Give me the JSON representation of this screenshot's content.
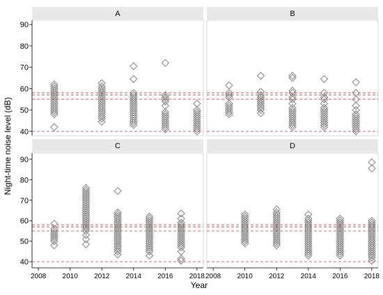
{
  "figure": {
    "xlabel": "Year",
    "ylabel": "Night-time noise level (dB)"
  },
  "colors": {
    "marker": "#8c8c8c",
    "reference_line": "#d62728",
    "strip_background": "#e8e8e8",
    "axis": "#000000"
  },
  "chart_data": [
    {
      "type": "scatter",
      "panel": "A",
      "marker": "hollow diamond",
      "xlim": [
        2007.6,
        2018.4
      ],
      "ylim": [
        38,
        92
      ],
      "x_ticks": [
        2008,
        2010,
        2012,
        2014,
        2016,
        2018
      ],
      "y_ticks": [
        40,
        50,
        60,
        70,
        80,
        90
      ],
      "show_x_tick_labels": false,
      "show_y_tick_labels": true,
      "reference_lines": [
        40,
        55,
        57,
        58
      ],
      "points": [
        [
          2009,
          42
        ],
        [
          2009,
          48
        ],
        [
          2009,
          49
        ],
        [
          2009,
          50
        ],
        [
          2009,
          51
        ],
        [
          2009,
          52
        ],
        [
          2009,
          53
        ],
        [
          2009,
          54
        ],
        [
          2009,
          55
        ],
        [
          2009,
          56
        ],
        [
          2009,
          57
        ],
        [
          2009,
          58
        ],
        [
          2009,
          59
        ],
        [
          2009,
          60
        ],
        [
          2009,
          61
        ],
        [
          2009,
          62
        ],
        [
          2012,
          44.5
        ],
        [
          2012,
          46
        ],
        [
          2012,
          47
        ],
        [
          2012,
          48
        ],
        [
          2012,
          49
        ],
        [
          2012,
          50
        ],
        [
          2012,
          51
        ],
        [
          2012,
          52
        ],
        [
          2012,
          53
        ],
        [
          2012,
          54
        ],
        [
          2012,
          55
        ],
        [
          2012,
          56
        ],
        [
          2012,
          57
        ],
        [
          2012,
          58
        ],
        [
          2012,
          59
        ],
        [
          2012,
          60
        ],
        [
          2012,
          61
        ],
        [
          2012,
          62.5
        ],
        [
          2014,
          43
        ],
        [
          2014,
          44
        ],
        [
          2014,
          45
        ],
        [
          2014,
          46
        ],
        [
          2014,
          47
        ],
        [
          2014,
          48
        ],
        [
          2014,
          49
        ],
        [
          2014,
          50
        ],
        [
          2014,
          51
        ],
        [
          2014,
          52
        ],
        [
          2014,
          53
        ],
        [
          2014,
          54
        ],
        [
          2014,
          55
        ],
        [
          2014,
          56
        ],
        [
          2014,
          57
        ],
        [
          2014,
          58
        ],
        [
          2014,
          64.5
        ],
        [
          2014,
          70.5
        ],
        [
          2016,
          41
        ],
        [
          2016,
          42
        ],
        [
          2016,
          43
        ],
        [
          2016,
          44
        ],
        [
          2016,
          45
        ],
        [
          2016,
          46
        ],
        [
          2016,
          47
        ],
        [
          2016,
          48
        ],
        [
          2016,
          49
        ],
        [
          2016,
          52
        ],
        [
          2016,
          54
        ],
        [
          2016,
          55
        ],
        [
          2016,
          56
        ],
        [
          2016,
          57
        ],
        [
          2016,
          72
        ],
        [
          2018,
          40
        ],
        [
          2018,
          41
        ],
        [
          2018,
          42
        ],
        [
          2018,
          43
        ],
        [
          2018,
          44
        ],
        [
          2018,
          45
        ],
        [
          2018,
          46
        ],
        [
          2018,
          47
        ],
        [
          2018,
          48
        ],
        [
          2018,
          49
        ],
        [
          2018,
          50
        ],
        [
          2018,
          53
        ]
      ]
    },
    {
      "type": "scatter",
      "panel": "B",
      "marker": "hollow diamond",
      "xlim": [
        2007.6,
        2018.4
      ],
      "ylim": [
        38,
        92
      ],
      "x_ticks": [
        2008,
        2010,
        2012,
        2014,
        2016,
        2018
      ],
      "y_ticks": [
        40,
        50,
        60,
        70,
        80,
        90
      ],
      "show_x_tick_labels": false,
      "show_y_tick_labels": false,
      "reference_lines": [
        40,
        55,
        57,
        58
      ],
      "points": [
        [
          2009,
          48
        ],
        [
          2009,
          49
        ],
        [
          2009,
          50
        ],
        [
          2009,
          51
        ],
        [
          2009,
          52
        ],
        [
          2009,
          53
        ],
        [
          2009,
          56
        ],
        [
          2009,
          57
        ],
        [
          2009,
          58
        ],
        [
          2009,
          61.5
        ],
        [
          2011,
          48.5
        ],
        [
          2011,
          50
        ],
        [
          2011,
          51
        ],
        [
          2011,
          52
        ],
        [
          2011,
          53
        ],
        [
          2011,
          54
        ],
        [
          2011,
          55
        ],
        [
          2011,
          56
        ],
        [
          2011,
          57
        ],
        [
          2011,
          58.5
        ],
        [
          2011,
          66
        ],
        [
          2013,
          42
        ],
        [
          2013,
          43
        ],
        [
          2013,
          44
        ],
        [
          2013,
          45
        ],
        [
          2013,
          46
        ],
        [
          2013,
          47
        ],
        [
          2013,
          48
        ],
        [
          2013,
          49
        ],
        [
          2013,
          50
        ],
        [
          2013,
          51
        ],
        [
          2013,
          53
        ],
        [
          2013,
          55
        ],
        [
          2013,
          56
        ],
        [
          2013,
          58
        ],
        [
          2013,
          59
        ],
        [
          2013,
          65
        ],
        [
          2013,
          66
        ],
        [
          2015,
          42
        ],
        [
          2015,
          43
        ],
        [
          2015,
          44
        ],
        [
          2015,
          45
        ],
        [
          2015,
          46
        ],
        [
          2015,
          47
        ],
        [
          2015,
          48
        ],
        [
          2015,
          49
        ],
        [
          2015,
          50
        ],
        [
          2015,
          51
        ],
        [
          2015,
          53
        ],
        [
          2015,
          55
        ],
        [
          2015,
          56
        ],
        [
          2015,
          58
        ],
        [
          2015,
          64.5
        ],
        [
          2017,
          40
        ],
        [
          2017,
          41
        ],
        [
          2017,
          42
        ],
        [
          2017,
          43
        ],
        [
          2017,
          44
        ],
        [
          2017,
          45
        ],
        [
          2017,
          46
        ],
        [
          2017,
          47
        ],
        [
          2017,
          48
        ],
        [
          2017,
          50
        ],
        [
          2017,
          52
        ],
        [
          2017,
          55
        ],
        [
          2017,
          58
        ],
        [
          2017,
          63
        ]
      ]
    },
    {
      "type": "scatter",
      "panel": "C",
      "marker": "hollow diamond",
      "xlim": [
        2007.6,
        2018.4
      ],
      "ylim": [
        37,
        93
      ],
      "x_ticks": [
        2008,
        2010,
        2012,
        2014,
        2016,
        2018
      ],
      "y_ticks": [
        40,
        50,
        60,
        70,
        80,
        90
      ],
      "show_x_tick_labels": true,
      "show_y_tick_labels": true,
      "reference_lines": [
        40,
        55,
        57,
        58
      ],
      "points": [
        [
          2009,
          48
        ],
        [
          2009,
          50
        ],
        [
          2009,
          51
        ],
        [
          2009,
          52
        ],
        [
          2009,
          53
        ],
        [
          2009,
          54
        ],
        [
          2009,
          55
        ],
        [
          2009,
          56
        ],
        [
          2009,
          58.5
        ],
        [
          2011,
          48.5
        ],
        [
          2011,
          51
        ],
        [
          2011,
          53
        ],
        [
          2011,
          55
        ],
        [
          2011,
          56
        ],
        [
          2011,
          57
        ],
        [
          2011,
          58
        ],
        [
          2011,
          59
        ],
        [
          2011,
          60
        ],
        [
          2011,
          61
        ],
        [
          2011,
          62
        ],
        [
          2011,
          63
        ],
        [
          2011,
          64
        ],
        [
          2011,
          65
        ],
        [
          2011,
          66
        ],
        [
          2011,
          67
        ],
        [
          2011,
          68
        ],
        [
          2011,
          69
        ],
        [
          2011,
          70
        ],
        [
          2011,
          71
        ],
        [
          2011,
          72
        ],
        [
          2011,
          73
        ],
        [
          2011,
          74
        ],
        [
          2011,
          75
        ],
        [
          2011,
          76
        ],
        [
          2013,
          43.5
        ],
        [
          2013,
          45
        ],
        [
          2013,
          46
        ],
        [
          2013,
          47
        ],
        [
          2013,
          48
        ],
        [
          2013,
          49
        ],
        [
          2013,
          50
        ],
        [
          2013,
          51
        ],
        [
          2013,
          52
        ],
        [
          2013,
          53
        ],
        [
          2013,
          54
        ],
        [
          2013,
          55
        ],
        [
          2013,
          56
        ],
        [
          2013,
          57
        ],
        [
          2013,
          58
        ],
        [
          2013,
          59
        ],
        [
          2013,
          60
        ],
        [
          2013,
          61
        ],
        [
          2013,
          62
        ],
        [
          2013,
          63
        ],
        [
          2013,
          64
        ],
        [
          2013,
          74.5
        ],
        [
          2015,
          43
        ],
        [
          2015,
          45
        ],
        [
          2015,
          46
        ],
        [
          2015,
          47
        ],
        [
          2015,
          48
        ],
        [
          2015,
          49
        ],
        [
          2015,
          50
        ],
        [
          2015,
          51
        ],
        [
          2015,
          52
        ],
        [
          2015,
          53
        ],
        [
          2015,
          54
        ],
        [
          2015,
          55
        ],
        [
          2015,
          56
        ],
        [
          2015,
          57
        ],
        [
          2015,
          58
        ],
        [
          2015,
          59
        ],
        [
          2015,
          60
        ],
        [
          2015,
          61
        ],
        [
          2015,
          62
        ],
        [
          2017,
          40.5
        ],
        [
          2017,
          41.5
        ],
        [
          2017,
          45
        ],
        [
          2017,
          47
        ],
        [
          2017,
          48
        ],
        [
          2017,
          49
        ],
        [
          2017,
          50
        ],
        [
          2017,
          51
        ],
        [
          2017,
          52
        ],
        [
          2017,
          53
        ],
        [
          2017,
          54
        ],
        [
          2017,
          55
        ],
        [
          2017,
          56
        ],
        [
          2017,
          57
        ],
        [
          2017,
          58
        ],
        [
          2017,
          59
        ],
        [
          2017,
          61
        ],
        [
          2017,
          63.5
        ]
      ]
    },
    {
      "type": "scatter",
      "panel": "D",
      "marker": "hollow diamond",
      "xlim": [
        2007.6,
        2018.4
      ],
      "ylim": [
        37,
        93
      ],
      "x_ticks": [
        2008,
        2010,
        2012,
        2014,
        2016,
        2018
      ],
      "y_ticks": [
        40,
        50,
        60,
        70,
        80,
        90
      ],
      "show_x_tick_labels": true,
      "show_y_tick_labels": false,
      "reference_lines": [
        40,
        55,
        57,
        58
      ],
      "points": [
        [
          2010,
          49
        ],
        [
          2010,
          50
        ],
        [
          2010,
          51
        ],
        [
          2010,
          52
        ],
        [
          2010,
          53
        ],
        [
          2010,
          54
        ],
        [
          2010,
          55
        ],
        [
          2010,
          56
        ],
        [
          2010,
          57
        ],
        [
          2010,
          58
        ],
        [
          2010,
          59
        ],
        [
          2010,
          60
        ],
        [
          2010,
          61
        ],
        [
          2010,
          62
        ],
        [
          2010,
          63
        ],
        [
          2012,
          48
        ],
        [
          2012,
          49
        ],
        [
          2012,
          50
        ],
        [
          2012,
          51
        ],
        [
          2012,
          52
        ],
        [
          2012,
          53
        ],
        [
          2012,
          54
        ],
        [
          2012,
          55
        ],
        [
          2012,
          56
        ],
        [
          2012,
          57
        ],
        [
          2012,
          58
        ],
        [
          2012,
          59
        ],
        [
          2012,
          60
        ],
        [
          2012,
          61
        ],
        [
          2012,
          62
        ],
        [
          2012,
          63
        ],
        [
          2012,
          64
        ],
        [
          2012,
          65.5
        ],
        [
          2014,
          43
        ],
        [
          2014,
          44
        ],
        [
          2014,
          45
        ],
        [
          2014,
          46
        ],
        [
          2014,
          47
        ],
        [
          2014,
          48
        ],
        [
          2014,
          49
        ],
        [
          2014,
          50
        ],
        [
          2014,
          51
        ],
        [
          2014,
          52
        ],
        [
          2014,
          53
        ],
        [
          2014,
          54
        ],
        [
          2014,
          55
        ],
        [
          2014,
          56
        ],
        [
          2014,
          57
        ],
        [
          2014,
          58
        ],
        [
          2014,
          59
        ],
        [
          2014,
          60
        ],
        [
          2014,
          61
        ],
        [
          2014,
          63
        ],
        [
          2016,
          43
        ],
        [
          2016,
          44
        ],
        [
          2016,
          45
        ],
        [
          2016,
          46
        ],
        [
          2016,
          47
        ],
        [
          2016,
          48
        ],
        [
          2016,
          49
        ],
        [
          2016,
          50
        ],
        [
          2016,
          51
        ],
        [
          2016,
          52
        ],
        [
          2016,
          53
        ],
        [
          2016,
          54
        ],
        [
          2016,
          55
        ],
        [
          2016,
          56
        ],
        [
          2016,
          57
        ],
        [
          2016,
          58
        ],
        [
          2016,
          59
        ],
        [
          2016,
          60
        ],
        [
          2016,
          61
        ],
        [
          2018,
          40.5
        ],
        [
          2018,
          42
        ],
        [
          2018,
          43
        ],
        [
          2018,
          44
        ],
        [
          2018,
          45
        ],
        [
          2018,
          46
        ],
        [
          2018,
          47
        ],
        [
          2018,
          48
        ],
        [
          2018,
          49
        ],
        [
          2018,
          50
        ],
        [
          2018,
          51
        ],
        [
          2018,
          52
        ],
        [
          2018,
          53
        ],
        [
          2018,
          54
        ],
        [
          2018,
          55
        ],
        [
          2018,
          56
        ],
        [
          2018,
          57
        ],
        [
          2018,
          58
        ],
        [
          2018,
          59
        ],
        [
          2018,
          60
        ],
        [
          2018,
          85.5
        ],
        [
          2018,
          88.5
        ]
      ]
    }
  ]
}
